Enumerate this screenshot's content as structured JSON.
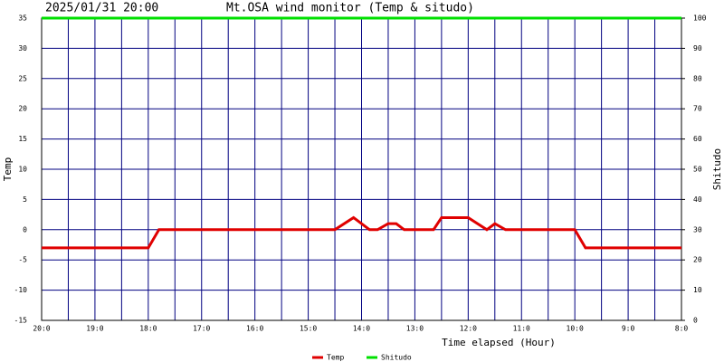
{
  "chart_data": {
    "type": "line",
    "date": "2025/01/31 20:00",
    "title": "Mt.OSA wind monitor (Temp & situdo)",
    "xlabel": "Time elapsed (Hour)",
    "ylabel": "Temp",
    "y2label": "Shitudo",
    "xlim": [
      0,
      12
    ],
    "xticks": [
      {
        "value": 0,
        "label": "20:0"
      },
      {
        "value": 1,
        "label": "19:0"
      },
      {
        "value": 2,
        "label": "18:0"
      },
      {
        "value": 3,
        "label": "17:0"
      },
      {
        "value": 4,
        "label": "16:0"
      },
      {
        "value": 5,
        "label": "15:0"
      },
      {
        "value": 6,
        "label": "14:0"
      },
      {
        "value": 7,
        "label": "13:0"
      },
      {
        "value": 8,
        "label": "12:0"
      },
      {
        "value": 9,
        "label": "11:0"
      },
      {
        "value": 10,
        "label": "10:0"
      },
      {
        "value": 11,
        "label": "9:0"
      },
      {
        "value": 12,
        "label": "8:0"
      }
    ],
    "xminorticks": [
      0.5,
      1.5,
      2.5,
      3.5,
      4.5,
      5.5,
      6.5,
      7.5,
      8.5,
      9.5,
      10.5,
      11.5
    ],
    "ylim": [
      -15,
      35
    ],
    "yticks": [
      -15,
      -10,
      -5,
      0,
      5,
      10,
      15,
      20,
      25,
      30,
      35
    ],
    "y2lim": [
      0,
      100
    ],
    "y2ticks": [
      0,
      10,
      20,
      30,
      40,
      50,
      60,
      70,
      80,
      90,
      100
    ],
    "grid": true,
    "series": [
      {
        "name": "Temp",
        "color": "#e00000",
        "x": [
          0,
          2,
          2.2,
          5.5,
          5.85,
          6.15,
          6.3,
          6.5,
          6.65,
          6.8,
          7.35,
          7.5,
          8.0,
          8.35,
          8.5,
          8.7,
          10.0,
          10.2,
          12
        ],
        "values": [
          -3,
          -3,
          0,
          0,
          2,
          0,
          0,
          1,
          1,
          0,
          0,
          2,
          2,
          0,
          1,
          0,
          0,
          -3,
          -3
        ]
      },
      {
        "name": "Shitudo",
        "color": "#00e000",
        "axis": "y2",
        "x": [
          0,
          12
        ],
        "values": [
          100,
          100
        ]
      }
    ]
  }
}
